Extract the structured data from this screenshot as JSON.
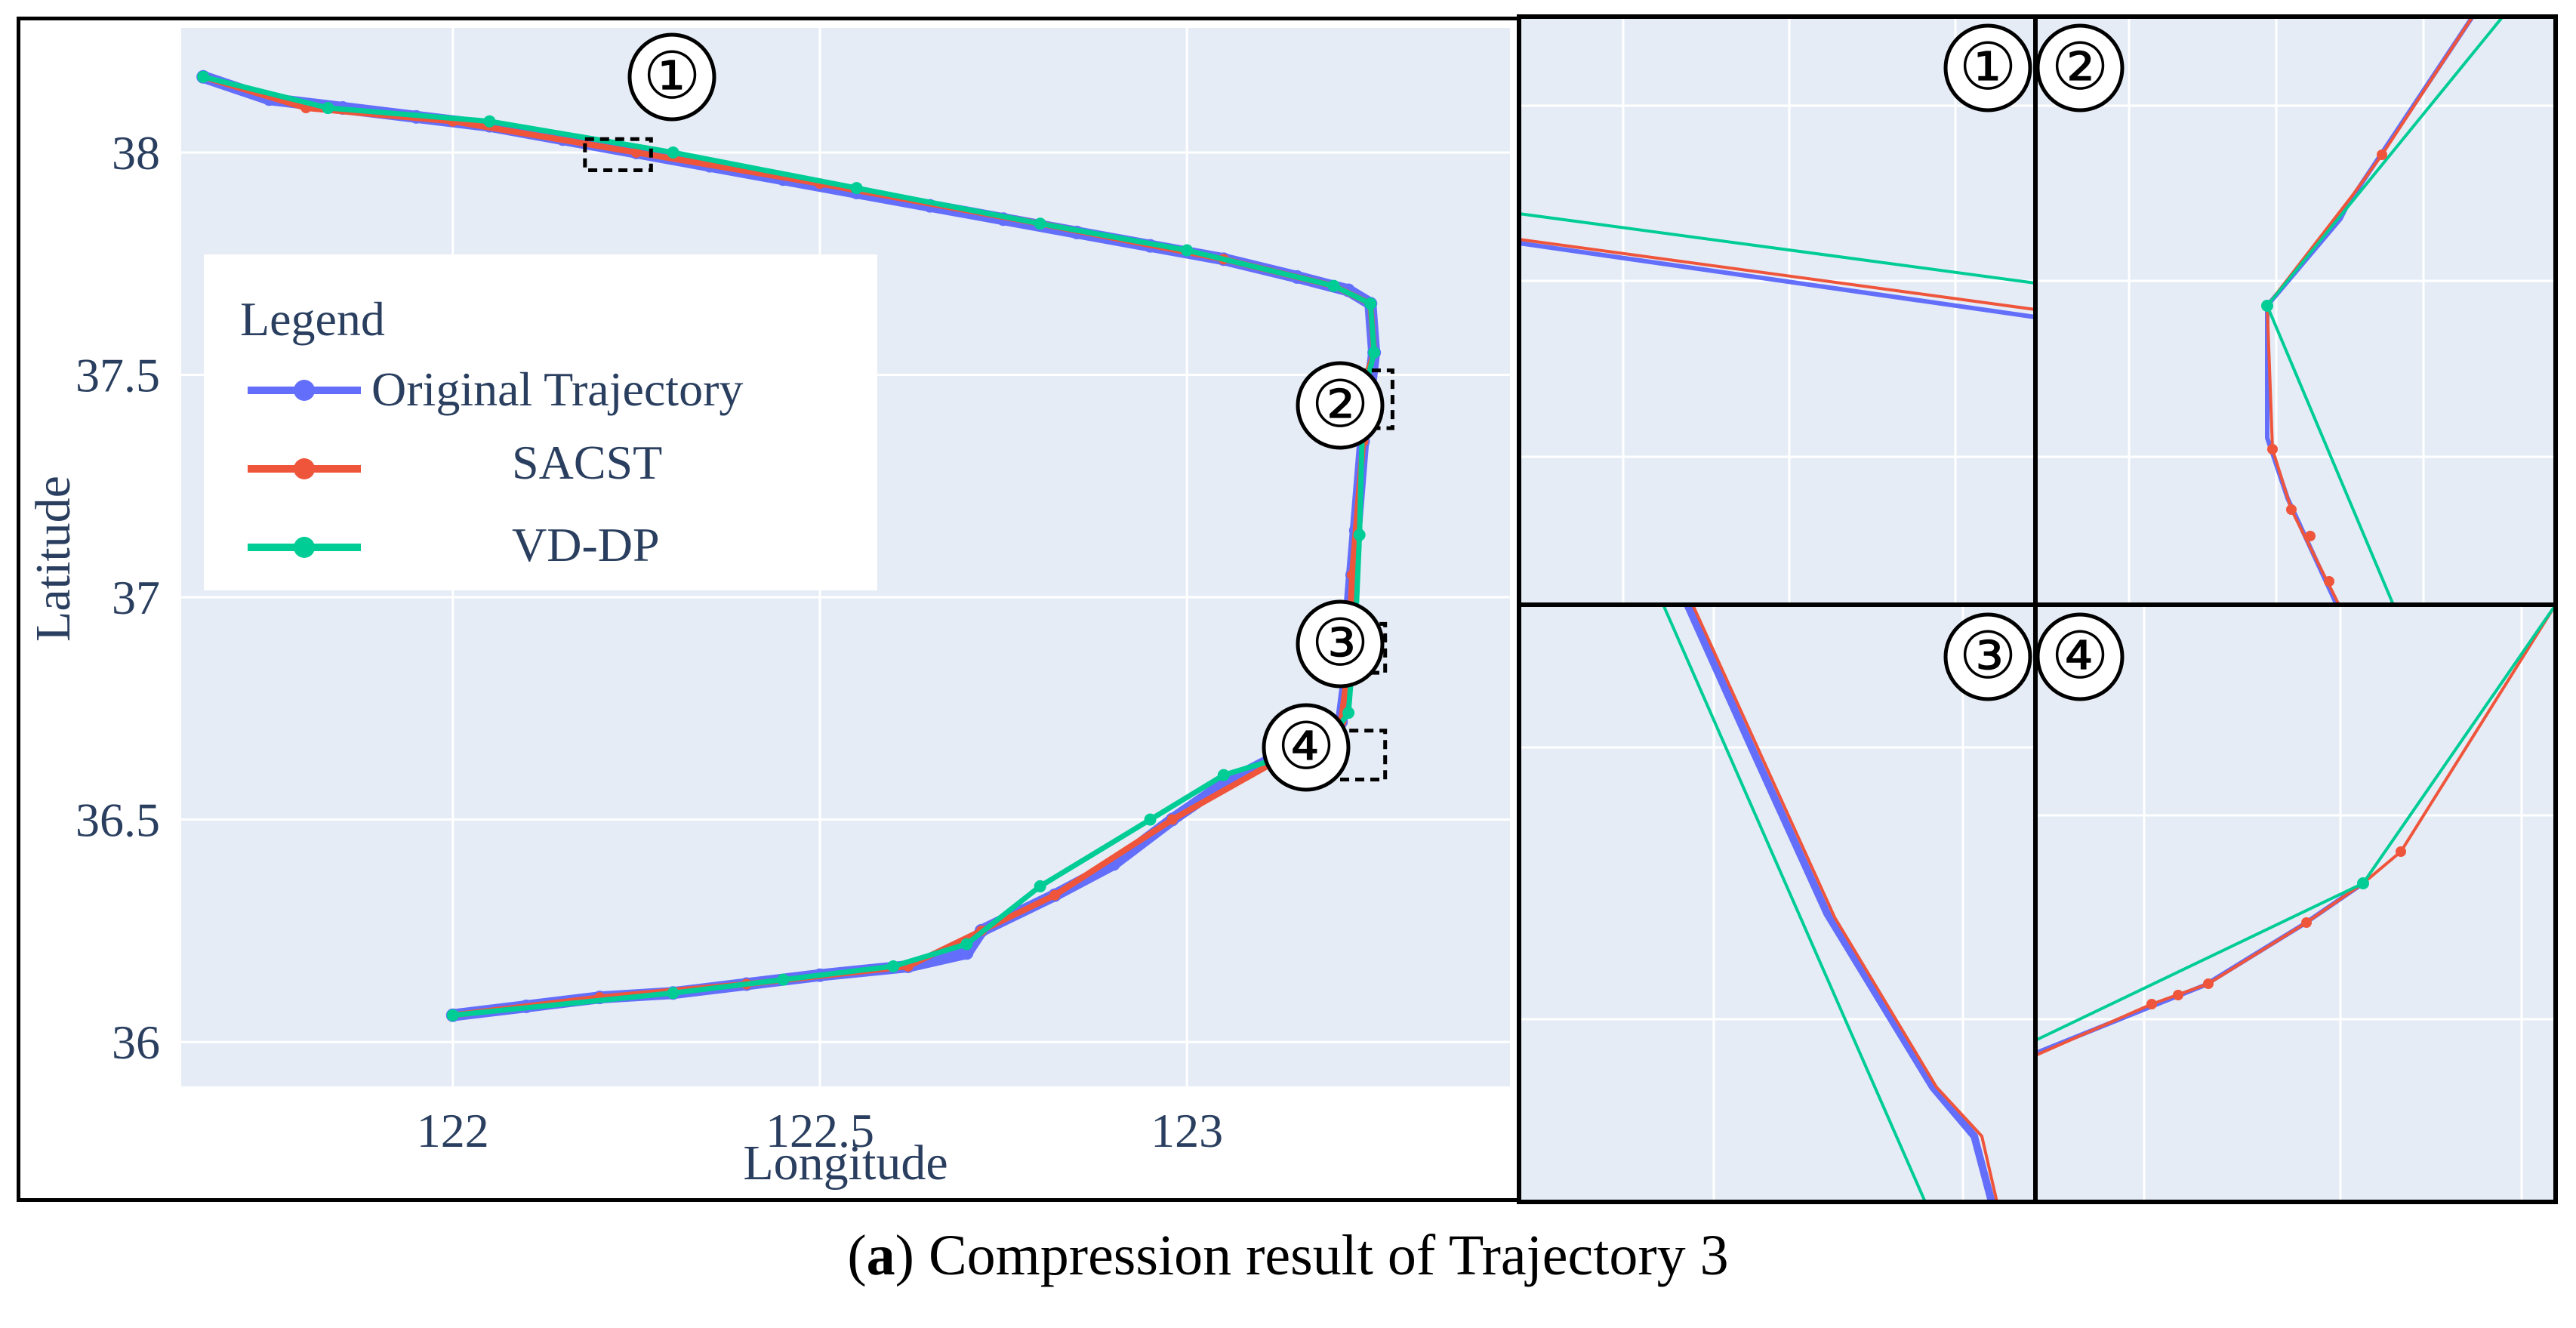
{
  "chart_data": [
    {
      "type": "line",
      "xlabel": "Longitude",
      "ylabel": "Latitude",
      "xlim": [
        121.63,
        123.44
      ],
      "ylim": [
        35.9,
        38.28
      ],
      "xticks": [
        122,
        122.5,
        123
      ],
      "xtick_labels": [
        "122",
        "122.5",
        "123"
      ],
      "yticks": [
        36,
        36.5,
        37,
        37.5,
        38
      ],
      "ytick_labels": [
        "36",
        "36.5",
        "37",
        "37.5",
        "38"
      ],
      "grid": true,
      "legend": {
        "title": "Legend",
        "placement": "left"
      },
      "series": [
        {
          "name": "Original Trajectory",
          "color": "#636efa",
          "x": [
            121.66,
            121.75,
            121.85,
            121.95,
            122.05,
            122.15,
            122.25,
            122.35,
            122.45,
            122.55,
            122.65,
            122.75,
            122.85,
            122.95,
            123.05,
            123.15,
            123.22,
            123.25,
            123.255,
            123.25,
            123.235,
            123.24,
            123.23,
            123.225,
            123.22,
            123.22,
            123.21,
            123.19,
            123.12,
            123.05,
            122.98,
            122.9,
            122.82,
            122.72,
            122.7,
            122.62,
            122.5,
            122.4,
            122.3,
            122.2,
            122.1,
            122.0
          ],
          "y": [
            38.17,
            38.12,
            38.1,
            38.08,
            38.06,
            38.03,
            38.0,
            37.97,
            37.94,
            37.91,
            37.88,
            37.85,
            37.82,
            37.79,
            37.76,
            37.72,
            37.69,
            37.66,
            37.55,
            37.48,
            37.45,
            37.35,
            37.15,
            37.05,
            36.95,
            36.85,
            36.72,
            36.67,
            36.64,
            36.58,
            36.5,
            36.4,
            36.33,
            36.25,
            36.2,
            36.17,
            36.15,
            36.13,
            36.11,
            36.1,
            36.08,
            36.06
          ]
        },
        {
          "name": "SACST",
          "color": "#ef553b",
          "x": [
            121.66,
            121.8,
            122.0,
            122.25,
            122.5,
            122.8,
            123.05,
            123.2,
            123.25,
            123.255,
            123.235,
            123.24,
            123.225,
            123.22,
            123.21,
            123.19,
            123.12,
            122.98,
            122.82,
            122.72,
            122.62,
            122.4,
            122.2,
            122.0
          ],
          "y": [
            38.17,
            38.1,
            38.07,
            38.0,
            37.93,
            37.84,
            37.76,
            37.7,
            37.66,
            37.55,
            37.45,
            37.35,
            37.05,
            36.85,
            36.72,
            36.67,
            36.63,
            36.5,
            36.33,
            36.25,
            36.17,
            36.13,
            36.1,
            36.06
          ]
        },
        {
          "name": "VD-DP",
          "color": "#00cc96",
          "x": [
            121.66,
            121.83,
            122.05,
            122.3,
            122.55,
            122.8,
            123.0,
            123.2,
            123.25,
            123.255,
            123.24,
            123.235,
            123.23,
            123.22,
            123.19,
            123.05,
            122.95,
            122.8,
            122.7,
            122.6,
            122.45,
            122.3,
            122.0
          ],
          "y": [
            38.17,
            38.1,
            38.07,
            38.0,
            37.92,
            37.84,
            37.78,
            37.7,
            37.66,
            37.55,
            37.45,
            37.14,
            36.95,
            36.74,
            36.67,
            36.6,
            36.5,
            36.35,
            36.22,
            36.17,
            36.14,
            36.11,
            36.06
          ]
        }
      ],
      "annotations": [
        "①",
        "②",
        "③",
        "④"
      ]
    }
  ],
  "insets": [
    {
      "label": "①"
    },
    {
      "label": "②"
    },
    {
      "label": "③"
    },
    {
      "label": "④"
    }
  ],
  "caption": {
    "prefix": "(",
    "bold": "a",
    "suffix": ") Compression result of Trajectory 3"
  }
}
